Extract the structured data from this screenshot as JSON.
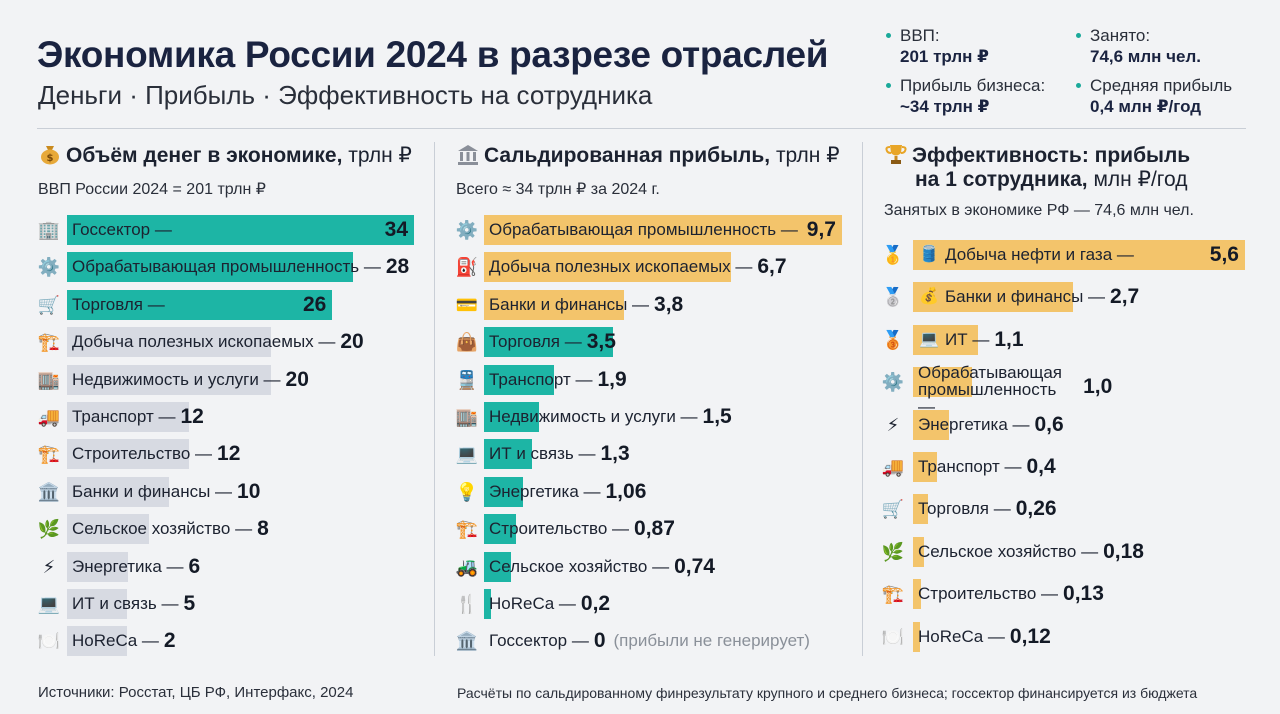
{
  "header": {
    "title": "Экономика России 2024 в разрезе отраслей",
    "subtitle": "Деньги · Прибыль · Эффективность на сотрудника"
  },
  "stats": [
    {
      "label": "ВВП:",
      "value": "201 трлн ₽"
    },
    {
      "label": "Занято:",
      "value": "74,6 млн чел."
    },
    {
      "label": "Прибыль бизнеса:",
      "value": "~34 трлн ₽"
    },
    {
      "label": "Средняя прибыль",
      "value": "0,4 млн ₽/год"
    }
  ],
  "colors": {
    "teal": "#1db5a5",
    "gray": "#d7dae2",
    "orange": "#f3c46b",
    "text": "#141a26",
    "accent": "#1aa99a"
  },
  "panels": {
    "money": {
      "title_bold": "Объём денег в экономике,",
      "title_rest": " трлн ₽",
      "subtitle": "ВВП России 2024 = 201 трлн ₽"
    },
    "profit": {
      "title_bold": "Сальдированная прибыль,",
      "title_rest": " трлн ₽",
      "subtitle": "Всего ≈ 34 трлн ₽ за 2024 г."
    },
    "efficiency": {
      "title_line1": "Эффективность: прибыль",
      "title_line2_bold": "на 1 сотрудника,",
      "title_line2_rest": " млн ₽/год",
      "subtitle": "Занятых в экономике РФ — 74,6 млн чел."
    }
  },
  "footer": {
    "left": "Источники: Росстат, ЦБ РФ, Интерфакс, 2024",
    "right": "Расчёты по сальдированному финрезультату крупного и среднего бизнеса; госсектор финансируется из бюджета"
  },
  "chart_data": [
    {
      "type": "bar",
      "title": "Объём денег в экономике, трлн ₽",
      "subtitle": "ВВП России 2024 = 201 трлн ₽",
      "categories": [
        "Госсектор —",
        "Обрабатывающая промышленность —",
        "Торговля —",
        "Добыча полезных ископаемых —",
        "Недвижимость и услуги —",
        "Транспорт —",
        "Строительство —",
        "Банки и финансы —",
        "Сельское хозяйство —",
        "Энергетика —",
        "ИТ и связь —",
        "HoReCa —"
      ],
      "values": [
        34,
        28,
        26,
        20,
        20,
        12,
        12,
        10,
        8,
        6,
        5,
        2
      ],
      "value_labels": [
        "34",
        "28",
        "26",
        "20",
        "20",
        "12",
        "12",
        "10",
        "8",
        "6",
        "5",
        "2"
      ],
      "highlight": [
        true,
        true,
        true,
        false,
        false,
        false,
        false,
        false,
        false,
        false,
        false,
        false
      ],
      "icons": [
        "building-icon",
        "gear-icon",
        "cart-icon",
        "crane-icon",
        "office-icon",
        "truck-icon",
        "crane-icon",
        "bank-icon",
        "wheat-icon",
        "lightning-icon",
        "laptop-icon",
        "plate-icon"
      ],
      "xlim": [
        0,
        34
      ]
    },
    {
      "type": "bar",
      "title": "Сальдированная прибыль, трлн ₽",
      "subtitle": "Всего ≈ 34 трлн ₽ за 2024 г.",
      "categories": [
        "Обрабатывающая промышленность —",
        "Добыча полезных ископаемых —",
        "Банки и финансы —",
        "Торговля —",
        "Транспорт —",
        "Недвижимость и услуги —",
        "ИТ и связь —",
        "Энергетика —",
        "Строительство —",
        "Сельское хозяйство —",
        "HoReCa —",
        "Госсектор —"
      ],
      "values": [
        9.7,
        6.7,
        3.8,
        3.5,
        1.9,
        1.5,
        1.3,
        1.06,
        0.87,
        0.74,
        0.2,
        0
      ],
      "value_labels": [
        "9,7",
        "6,7",
        "3,8",
        "3,5",
        "1,9",
        "1,5",
        "1,3",
        "1,06",
        "0,87",
        "0,74",
        "0,2",
        "0"
      ],
      "colors": [
        "orange",
        "orange",
        "orange",
        "teal",
        "teal",
        "teal",
        "teal",
        "teal",
        "teal",
        "teal",
        "teal",
        "none"
      ],
      "notes": [
        "",
        "",
        "",
        "",
        "",
        "",
        "",
        "",
        "",
        "",
        "",
        "(прибыли не генерирует)"
      ],
      "icons": [
        "gear-icon",
        "fuel-icon",
        "card-icon",
        "bag-icon",
        "train-icon",
        "office-icon",
        "laptop-icon",
        "bulb-icon",
        "crane-icon",
        "tractor-icon",
        "fork-icon",
        "bank-icon"
      ],
      "xlim": [
        0,
        9.7
      ]
    },
    {
      "type": "bar",
      "title": "Эффективность: прибыль на 1 сотрудника, млн ₽/год",
      "subtitle": "Занятых в экономике РФ — 74,6 млн чел.",
      "categories": [
        "Добыча нефти и газа —",
        "Банки и финансы —",
        "ИТ —",
        "Обрабатывающая промышленность —",
        "Энергетика —",
        "Транспорт —",
        "Торговля —",
        "Сельское хозяйство —",
        "Строительство —",
        "HoReCa —"
      ],
      "values": [
        5.6,
        2.7,
        1.1,
        1.0,
        0.6,
        0.4,
        0.26,
        0.18,
        0.13,
        0.12
      ],
      "value_labels": [
        "5,6",
        "2,7",
        "1,1",
        "1,0",
        "0,6",
        "0,4",
        "0,26",
        "0,18",
        "0,13",
        "0,12"
      ],
      "icons": [
        "gold-medal-icon",
        "silver-medal-icon",
        "bronze-medal-icon",
        "gear-icon",
        "lightning-icon",
        "truck-icon",
        "cart-icon",
        "wheat-icon",
        "crane-icon",
        "plate-icon"
      ],
      "sub_icons": [
        "oil-barrel-icon",
        "money-bag-icon",
        "laptop-icon",
        "",
        "",
        "",
        "",
        "",
        "",
        ""
      ],
      "xlim": [
        0,
        5.6
      ]
    }
  ]
}
